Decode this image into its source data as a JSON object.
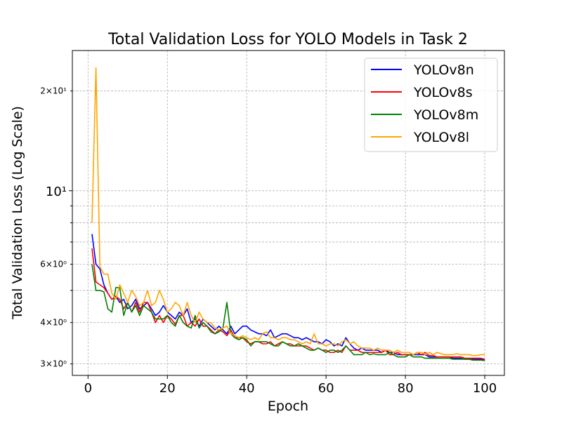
{
  "chart_data": {
    "type": "line",
    "title": "Total Validation Loss for YOLO Models in Task 2",
    "x_label": "Epoch",
    "y_label": "Total Validation Loss (Log Scale)",
    "y_scale": "log",
    "grid": true,
    "legend_position": "upper-right",
    "x": [
      1,
      2,
      3,
      4,
      5,
      6,
      7,
      8,
      9,
      10,
      11,
      12,
      13,
      14,
      15,
      16,
      17,
      18,
      19,
      20,
      21,
      22,
      23,
      24,
      25,
      26,
      27,
      28,
      29,
      30,
      31,
      32,
      33,
      34,
      35,
      36,
      37,
      38,
      39,
      40,
      41,
      42,
      43,
      44,
      45,
      46,
      47,
      48,
      49,
      50,
      51,
      52,
      53,
      54,
      55,
      56,
      57,
      58,
      59,
      60,
      61,
      62,
      63,
      64,
      65,
      66,
      67,
      68,
      69,
      70,
      71,
      72,
      73,
      74,
      75,
      76,
      77,
      78,
      79,
      80,
      81,
      82,
      83,
      84,
      85,
      86,
      87,
      88,
      89,
      90,
      91,
      92,
      93,
      94,
      95,
      96,
      97,
      98,
      99,
      100
    ],
    "xlim": [
      -3.95,
      104.95
    ],
    "xticks": [
      0,
      20,
      40,
      60,
      80,
      100
    ],
    "ylim": [
      2.77,
      26.5
    ],
    "yticks": [
      {
        "value": 3,
        "label": "3×10⁰"
      },
      {
        "value": 4,
        "label": "4×10⁰"
      },
      {
        "value": 6,
        "label": "6×10⁰"
      },
      {
        "value": 10,
        "label": "10¹"
      },
      {
        "value": 20,
        "label": "2×10¹"
      }
    ],
    "minor_yticks": [
      5,
      7,
      8,
      9
    ],
    "series": [
      {
        "name": "YOLOv8n",
        "color": "#0000ff",
        "values": [
          7.4,
          6.0,
          5.8,
          5.2,
          4.9,
          4.7,
          4.8,
          4.6,
          4.7,
          4.4,
          4.5,
          4.7,
          4.4,
          4.5,
          4.6,
          4.4,
          4.2,
          4.3,
          4.5,
          4.3,
          4.2,
          4.1,
          4.3,
          4.2,
          4.4,
          4.0,
          4.1,
          3.9,
          4.1,
          4.0,
          3.9,
          3.8,
          3.9,
          3.8,
          3.7,
          3.9,
          3.7,
          3.8,
          3.9,
          3.9,
          3.8,
          3.75,
          3.7,
          3.7,
          3.65,
          3.8,
          3.6,
          3.65,
          3.7,
          3.7,
          3.65,
          3.6,
          3.6,
          3.55,
          3.6,
          3.55,
          3.5,
          3.5,
          3.45,
          3.55,
          3.5,
          3.4,
          3.45,
          3.4,
          3.6,
          3.45,
          3.35,
          3.3,
          3.35,
          3.3,
          3.3,
          3.3,
          3.3,
          3.25,
          3.3,
          3.25,
          3.25,
          3.2,
          3.2,
          3.2,
          3.2,
          3.2,
          3.2,
          3.2,
          3.2,
          3.15,
          3.15,
          3.15,
          3.15,
          3.15,
          3.15,
          3.12,
          3.12,
          3.12,
          3.1,
          3.1,
          3.1,
          3.1,
          3.1,
          3.08
        ]
      },
      {
        "name": "YOLOv8s",
        "color": "#ff0000",
        "values": [
          6.7,
          5.3,
          5.2,
          5.1,
          4.9,
          4.7,
          4.8,
          4.7,
          4.4,
          4.6,
          4.3,
          4.6,
          4.3,
          4.6,
          4.6,
          4.3,
          4.0,
          4.2,
          4.0,
          4.2,
          4.1,
          3.95,
          4.2,
          4.2,
          3.9,
          4.0,
          3.9,
          4.1,
          3.9,
          3.9,
          3.8,
          3.7,
          3.8,
          3.75,
          3.65,
          3.8,
          3.6,
          3.6,
          3.6,
          3.5,
          3.45,
          3.5,
          3.5,
          3.45,
          3.45,
          3.5,
          3.4,
          3.45,
          3.5,
          3.45,
          3.45,
          3.4,
          3.4,
          3.4,
          3.4,
          3.35,
          3.3,
          3.35,
          3.3,
          3.3,
          3.25,
          3.25,
          3.3,
          3.25,
          3.4,
          3.3,
          3.3,
          3.3,
          3.25,
          3.25,
          3.25,
          3.25,
          3.25,
          3.25,
          3.3,
          3.2,
          3.2,
          3.25,
          3.2,
          3.2,
          3.2,
          3.2,
          3.25,
          3.2,
          3.25,
          3.18,
          3.18,
          3.15,
          3.15,
          3.15,
          3.15,
          3.15,
          3.15,
          3.15,
          3.12,
          3.12,
          3.12,
          3.12,
          3.12,
          3.1
        ]
      },
      {
        "name": "YOLOv8m",
        "color": "#008000",
        "values": [
          6.0,
          5.0,
          5.0,
          4.95,
          4.4,
          4.3,
          5.1,
          5.1,
          4.2,
          4.6,
          4.3,
          4.5,
          4.2,
          4.5,
          4.4,
          4.3,
          4.1,
          4.1,
          4.1,
          4.2,
          4.0,
          3.9,
          4.2,
          4.0,
          3.9,
          3.85,
          4.2,
          3.85,
          4.0,
          3.9,
          3.75,
          3.7,
          3.75,
          3.85,
          4.6,
          3.7,
          3.6,
          3.55,
          3.6,
          3.55,
          3.4,
          3.5,
          3.5,
          3.5,
          3.5,
          3.45,
          3.4,
          3.4,
          3.5,
          3.45,
          3.4,
          3.4,
          3.45,
          3.4,
          3.35,
          3.3,
          3.3,
          3.35,
          3.3,
          3.25,
          3.3,
          3.3,
          3.25,
          3.3,
          3.4,
          3.3,
          3.2,
          3.2,
          3.2,
          3.25,
          3.2,
          3.22,
          3.2,
          3.2,
          3.2,
          3.25,
          3.2,
          3.15,
          3.15,
          3.15,
          3.2,
          3.15,
          3.15,
          3.15,
          3.12,
          3.12,
          3.12,
          3.12,
          3.12,
          3.12,
          3.12,
          3.1,
          3.1,
          3.1,
          3.1,
          3.1,
          3.08,
          3.08,
          3.08,
          3.07
        ]
      },
      {
        "name": "YOLOv8l",
        "color": "#ffa500",
        "values": [
          8.0,
          23.5,
          5.9,
          5.6,
          5.6,
          4.9,
          4.7,
          5.2,
          4.9,
          4.6,
          5.0,
          4.8,
          4.5,
          4.6,
          5.0,
          4.5,
          4.6,
          5.0,
          4.7,
          4.3,
          4.4,
          4.6,
          4.5,
          4.2,
          4.6,
          4.2,
          4.0,
          4.3,
          4.1,
          4.0,
          4.0,
          3.85,
          3.8,
          3.85,
          3.9,
          3.7,
          3.65,
          3.6,
          3.65,
          3.6,
          3.55,
          3.6,
          3.55,
          3.7,
          3.75,
          3.6,
          3.6,
          3.55,
          3.6,
          3.6,
          3.55,
          3.55,
          3.5,
          3.45,
          3.5,
          3.45,
          3.7,
          3.45,
          3.45,
          3.4,
          3.45,
          3.45,
          3.4,
          3.5,
          3.55,
          3.45,
          3.5,
          3.4,
          3.35,
          3.35,
          3.35,
          3.3,
          3.35,
          3.3,
          3.3,
          3.3,
          3.25,
          3.3,
          3.25,
          3.25,
          3.25,
          3.2,
          3.25,
          3.25,
          3.2,
          3.25,
          3.2,
          3.25,
          3.22,
          3.2,
          3.2,
          3.2,
          3.22,
          3.2,
          3.2,
          3.2,
          3.18,
          3.18,
          3.2,
          3.2
        ]
      }
    ]
  }
}
